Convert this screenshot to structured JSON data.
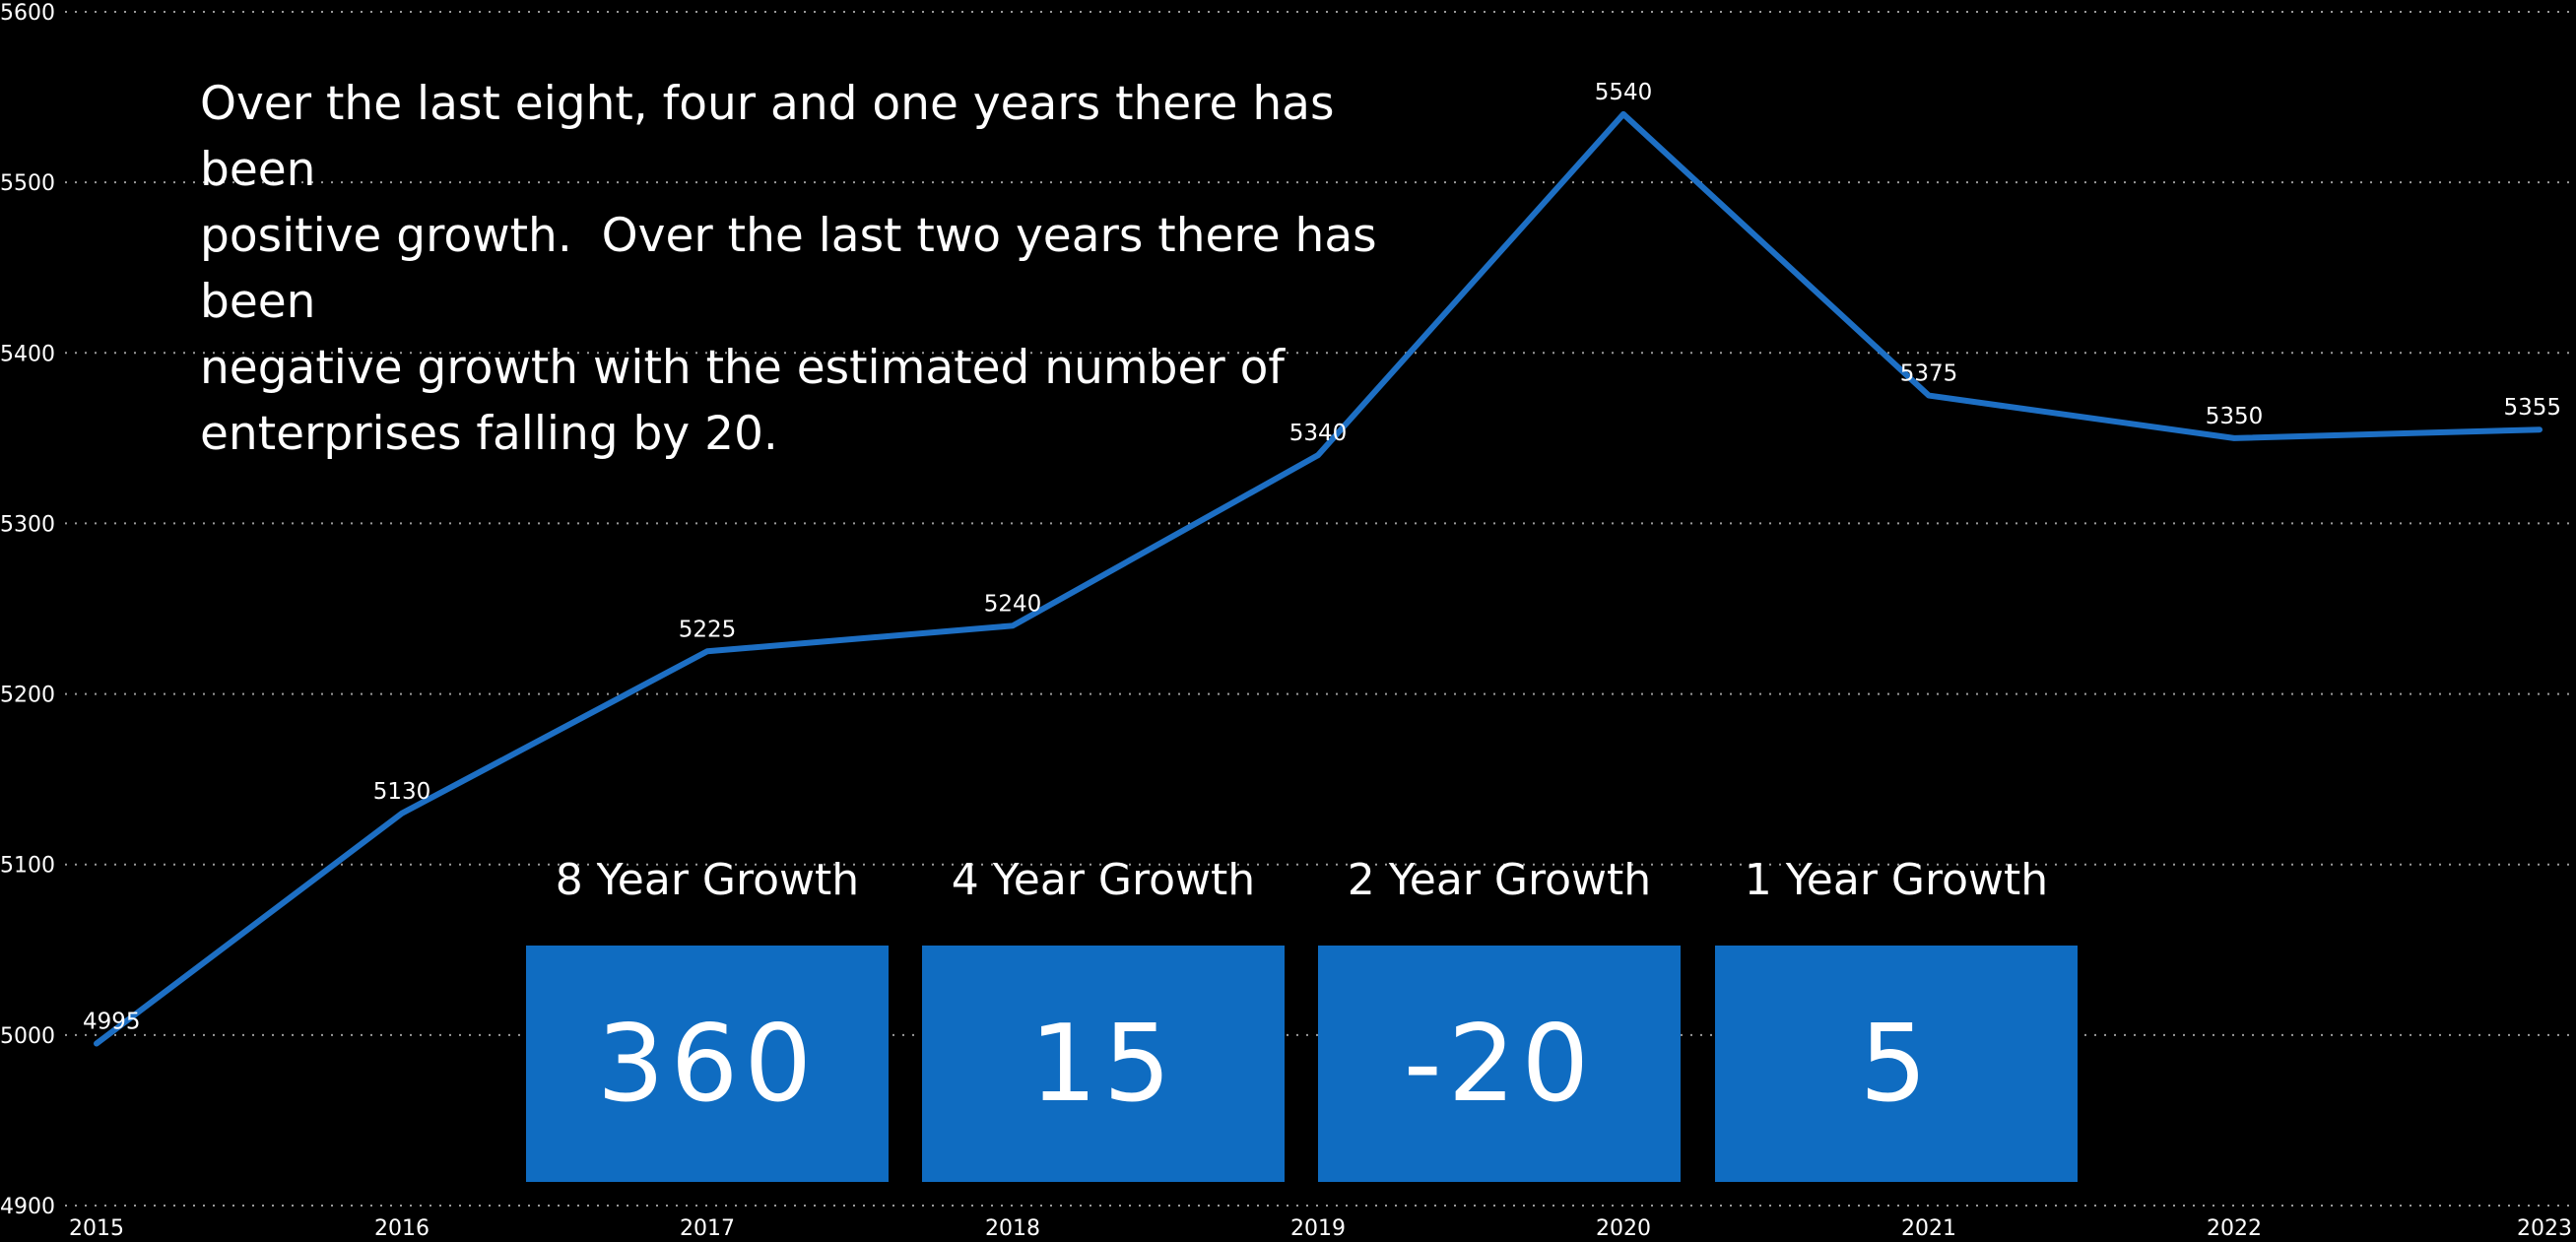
{
  "summary": {
    "text": "Over the last eight, four and one years there has been\npositive growth.  Over the last two years there has been\nnegative growth with the estimated number of\nenterprises falling by 20."
  },
  "kpis": [
    {
      "title": "8 Year Growth",
      "value": "360"
    },
    {
      "title": "4 Year Growth",
      "value": "15"
    },
    {
      "title": "2 Year Growth",
      "value": "-20"
    },
    {
      "title": "1 Year Growth",
      "value": "5"
    }
  ],
  "colors": {
    "background": "#000000",
    "line": "#1d6fc4",
    "card": "#0f6cc1",
    "grid": "#9a9a9a",
    "text": "#ffffff"
  },
  "chart_data": {
    "type": "line",
    "x": [
      "2015",
      "2016",
      "2017",
      "2018",
      "2019",
      "2020",
      "2021",
      "2022",
      "2023"
    ],
    "series": [
      {
        "values": [
          4995,
          5130,
          5225,
          5240,
          5340,
          5540,
          5375,
          5350,
          5355
        ]
      }
    ],
    "data_labels": [
      "4995",
      "5130",
      "5225",
      "5240",
      "5340",
      "5540",
      "5375",
      "5350",
      "5355"
    ],
    "y_ticks": [
      "4900",
      "5000",
      "5100",
      "5200",
      "5300",
      "5400",
      "5500",
      "5600"
    ],
    "ylim": [
      4900,
      5600
    ],
    "grid": "horizontal dotted",
    "title": "",
    "xlabel": "",
    "ylabel": ""
  }
}
